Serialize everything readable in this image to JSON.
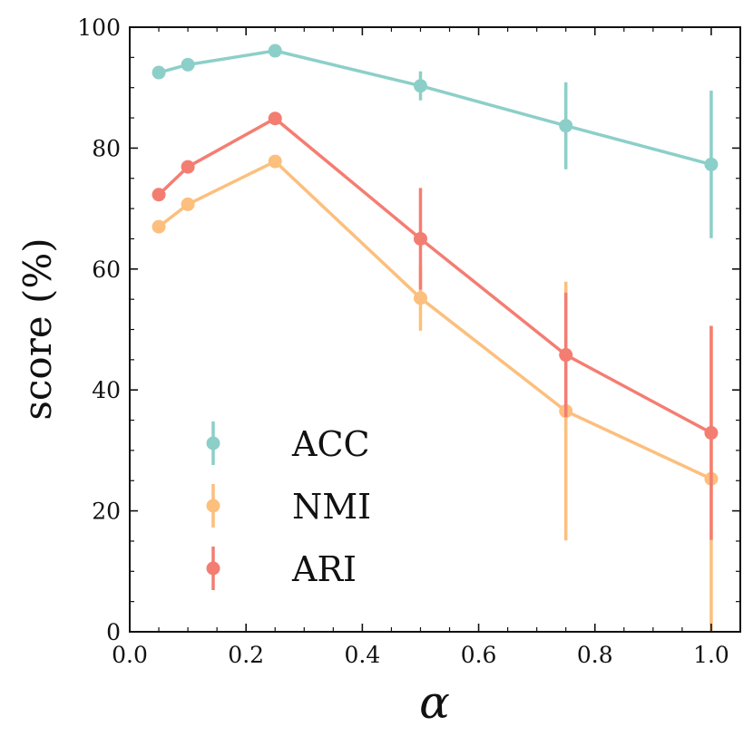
{
  "chart_data": {
    "type": "line",
    "title": "",
    "xlabel": "α",
    "ylabel": "score (%)",
    "xlim": [
      0.0,
      1.05
    ],
    "ylim": [
      0,
      100
    ],
    "x": [
      0.05,
      0.1,
      0.25,
      0.5,
      0.75,
      1.0
    ],
    "x_ticks": [
      0.0,
      0.2,
      0.4,
      0.6,
      0.8,
      1.0
    ],
    "x_tick_labels": [
      "0.0",
      "0.2",
      "0.4",
      "0.6",
      "0.8",
      "1.0"
    ],
    "y_ticks": [
      0,
      20,
      40,
      60,
      80,
      100
    ],
    "y_tick_labels": [
      "0",
      "20",
      "40",
      "60",
      "80",
      "100"
    ],
    "grid": false,
    "legend_position": "lower-left",
    "series": [
      {
        "name": "ACC",
        "color": "#8ccfc9",
        "values": [
          92.5,
          93.8,
          96.1,
          90.3,
          83.7,
          77.3
        ],
        "errors": [
          0.5,
          0.5,
          0.4,
          2.4,
          7.2,
          12.2
        ]
      },
      {
        "name": "NMI",
        "color": "#fcbf7d",
        "values": [
          67.0,
          70.7,
          77.8,
          55.2,
          36.5,
          25.3
        ],
        "errors": [
          0.5,
          0.5,
          0.5,
          5.4,
          21.4,
          25.3
        ]
      },
      {
        "name": "ARI",
        "color": "#f47d72",
        "values": [
          72.3,
          76.9,
          84.9,
          65.0,
          45.8,
          32.9
        ],
        "errors": [
          0.5,
          0.5,
          0.5,
          8.4,
          10.3,
          17.7
        ]
      }
    ]
  }
}
